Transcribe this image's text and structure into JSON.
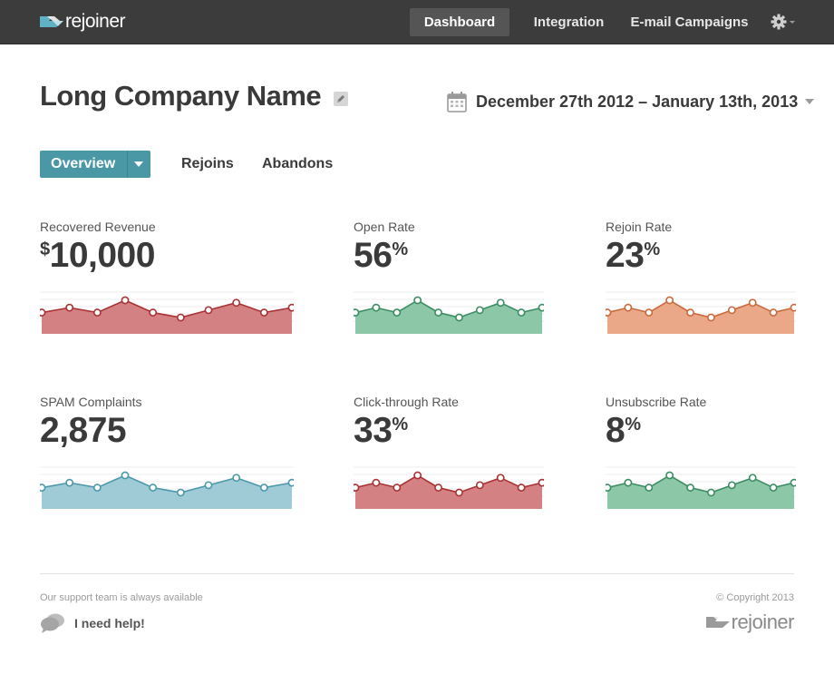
{
  "brand": {
    "name": "rejoiner"
  },
  "nav": {
    "items": [
      {
        "label": "Dashboard",
        "active": true
      },
      {
        "label": "Integration",
        "active": false
      },
      {
        "label": "E-mail Campaigns",
        "active": false
      }
    ],
    "settings_icon": "gear-icon"
  },
  "header": {
    "company_name": "Long Company Name",
    "date_range": "December 27th 2012 – January 13th, 2013"
  },
  "tabs": {
    "overview": "Overview",
    "rejoins": "Rejoins",
    "abandons": "Abandons"
  },
  "metrics": [
    {
      "label": "Recovered Revenue",
      "prefix": "$",
      "value": "10,000",
      "suffix": "",
      "color": "#c9575a",
      "fill": "#d48184",
      "line": "#a83234"
    },
    {
      "label": "Open Rate",
      "prefix": "",
      "value": "56",
      "suffix": "%",
      "color": "#5aa784",
      "fill": "#8cc7a7",
      "line": "#3c8d64"
    },
    {
      "label": "Rejoin Rate",
      "prefix": "",
      "value": "23",
      "suffix": "%",
      "color": "#e08a5e",
      "fill": "#eaa888",
      "line": "#c96a3c"
    },
    {
      "label": "SPAM Complaints",
      "prefix": "",
      "value": "2,875",
      "suffix": "",
      "color": "#6bb0c2",
      "fill": "#9fcbd7",
      "line": "#4c98ab"
    },
    {
      "label": "Click-through Rate",
      "prefix": "",
      "value": "33",
      "suffix": "%",
      "color": "#c9575a",
      "fill": "#d48184",
      "line": "#a83234"
    },
    {
      "label": "Unsubscribe Rate",
      "prefix": "",
      "value": "8",
      "suffix": "%",
      "color": "#5aa784",
      "fill": "#8cc7a7",
      "line": "#3c8d64"
    }
  ],
  "sparkline_values": [
    2,
    4,
    2,
    7,
    2,
    0,
    3,
    6,
    2,
    4
  ],
  "footer": {
    "support_text": "Our support team is always available",
    "help_link": "I need help!",
    "copyright": "© Copyright 2013",
    "brand": "rejoiner"
  }
}
